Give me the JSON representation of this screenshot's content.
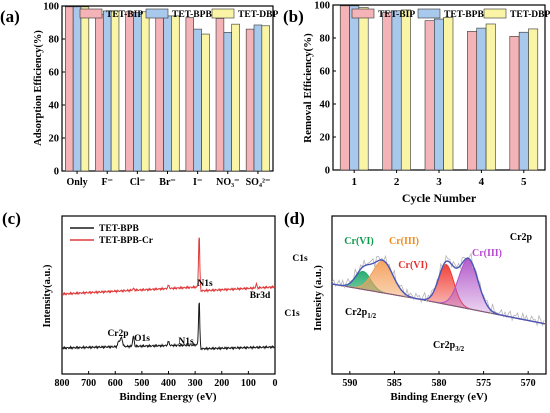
{
  "colors": {
    "bip": "#f4b3b6",
    "bpb": "#a9c9ec",
    "dbp": "#f9f4a6",
    "bar_edge": "#333333",
    "xps_tet_bpb": "#1a1a1a",
    "xps_tet_bpb_cr": "#e03b3b",
    "fit_envelope": "#4a55b8",
    "raw_data": "#b5b5b5",
    "peak_green": "#1faa6a",
    "peak_orange": "#f4a05a",
    "peak_red": "#f03a30",
    "peak_purple": "#b054c8",
    "label_green": "#0a9a4a",
    "label_orange": "#f08a1a",
    "label_red": "#e53030",
    "label_purple": "#b848d0"
  },
  "chart_data": [
    {
      "panel": "(a)",
      "type": "bar",
      "ylabel": "Adsorption Efficiency(%)",
      "ylim": [
        0,
        100
      ],
      "yticks": [
        0,
        20,
        40,
        60,
        80,
        100
      ],
      "categories": [
        "Only",
        "F⁻",
        "Cl⁻",
        "Br⁻",
        "I⁻",
        "NO₃⁻",
        "SO₄²⁻"
      ],
      "legend_position": "top",
      "series": [
        {
          "name": "TET-BIP",
          "values": [
            99.5,
            95,
            96.5,
            96.5,
            93,
            92.5,
            86
          ]
        },
        {
          "name": "TET-BPB",
          "values": [
            99.5,
            97,
            96,
            94,
            86,
            84,
            88.5
          ]
        },
        {
          "name": "TET-DBP",
          "values": [
            99.5,
            97,
            96.5,
            94,
            83,
            89,
            88
          ]
        }
      ]
    },
    {
      "panel": "(b)",
      "type": "bar",
      "ylabel": "Removal Efficiency(%)",
      "xlabel": "Cycle Number",
      "ylim": [
        0,
        100
      ],
      "yticks": [
        0,
        20,
        40,
        60,
        80,
        100
      ],
      "categories": [
        "1",
        "2",
        "3",
        "4",
        "5"
      ],
      "legend_position": "top-right",
      "series": [
        {
          "name": "TET-BIP",
          "values": [
            99.5,
            95.5,
            90.5,
            84,
            81
          ]
        },
        {
          "name": "TET-BPB",
          "values": [
            99.5,
            96.5,
            91.5,
            86,
            83.5
          ]
        },
        {
          "name": "TET-DBP",
          "values": [
            98.5,
            97,
            92.5,
            88.5,
            85.5
          ]
        }
      ]
    },
    {
      "panel": "(c)",
      "type": "line",
      "xlabel": "Binding Energy (eV)",
      "ylabel": "Intensity(a.u.)",
      "xlim": [
        800,
        0
      ],
      "xticks": [
        800,
        700,
        600,
        500,
        400,
        300,
        200,
        100,
        0
      ],
      "legend_position": "top-left",
      "series": [
        {
          "name": "TET-BPB",
          "role": "upper"
        },
        {
          "name": "TET-BPB-Cr",
          "role": "lower"
        }
      ],
      "annotations": [
        {
          "text": "C1s",
          "x": 285,
          "series": "upper"
        },
        {
          "text": "N1s",
          "x": 400,
          "series": "upper"
        },
        {
          "text": "Br3d",
          "x": 70,
          "series": "upper"
        },
        {
          "text": "C1s",
          "x": 285,
          "series": "lower"
        },
        {
          "text": "Cr2p",
          "x": 577,
          "series": "lower"
        },
        {
          "text": "O1s",
          "x": 532,
          "series": "lower"
        },
        {
          "text": "N1s",
          "x": 400,
          "series": "lower"
        }
      ]
    },
    {
      "panel": "(d)",
      "type": "area",
      "title": "Cr2p",
      "xlabel": "Binding Energy (eV)",
      "ylabel": "Intensity (a.u.)",
      "xlim": [
        592,
        568
      ],
      "xticks": [
        590,
        585,
        580,
        575,
        570
      ],
      "peaks": [
        {
          "label": "Cr(VI)",
          "center": 588.5,
          "color": "peak_green"
        },
        {
          "label": "Cr(III)",
          "center": 586.3,
          "color": "peak_orange"
        },
        {
          "label": "Cr(VI)",
          "center": 579.2,
          "color": "peak_red"
        },
        {
          "label": "Cr(III)",
          "center": 576.7,
          "color": "peak_purple"
        }
      ],
      "annotations": [
        {
          "main": "Cr2p",
          "sub": "1/2"
        },
        {
          "main": "Cr2p",
          "sub": "3/2"
        }
      ]
    }
  ]
}
